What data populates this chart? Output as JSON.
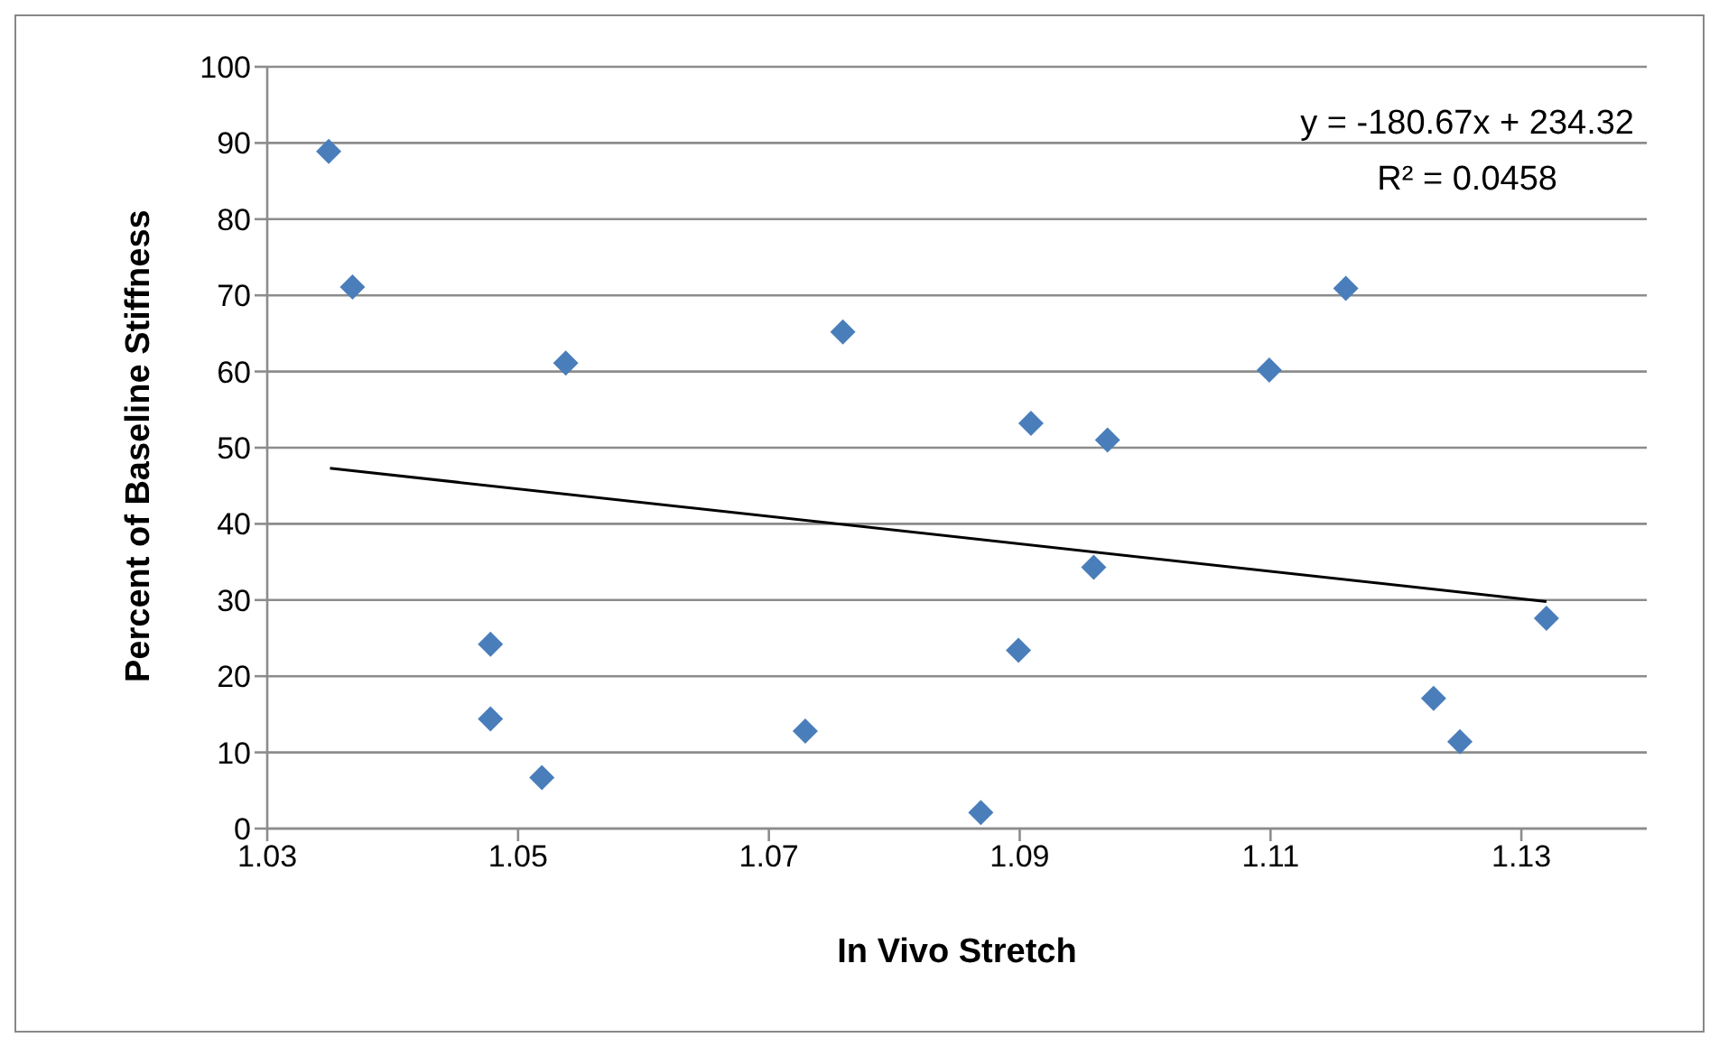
{
  "chart_data": {
    "type": "scatter",
    "xlabel": "In Vivo Stretch",
    "ylabel": "Percent  of Baseline Stiffness",
    "annotations": [
      "y = -180.67x + 234.32",
      "R² = 0.0458"
    ],
    "xlim": [
      1.03,
      1.14
    ],
    "xticks": [
      1.03,
      1.05,
      1.07,
      1.09,
      1.11,
      1.13
    ],
    "ylim": [
      0,
      100
    ],
    "yticks": [
      0,
      10,
      20,
      30,
      40,
      50,
      60,
      70,
      80,
      90,
      100
    ],
    "grid": "y",
    "legend": false,
    "marker": "diamond",
    "series": [
      {
        "color": "#4a7ebb",
        "x": [
          1.0349,
          1.0368,
          1.0538,
          1.0478,
          1.0478,
          1.0519,
          1.0729,
          1.0759,
          1.0909,
          1.097,
          1.0959,
          1.0899,
          1.0869,
          1.1099,
          1.116,
          1.123,
          1.1251,
          1.132
        ],
        "values": [
          88.9,
          71.1,
          61.1,
          24.2,
          14.4,
          6.7,
          12.8,
          65.2,
          53.2,
          51.0,
          34.3,
          23.4,
          2.1,
          60.2,
          70.9,
          17.1,
          11.4,
          27.6
        ]
      },
      {
        "type": "line",
        "color": "#000000",
        "marker": "none",
        "x": [
          1.035,
          1.132
        ],
        "values": [
          47.3,
          29.8
        ]
      }
    ]
  }
}
